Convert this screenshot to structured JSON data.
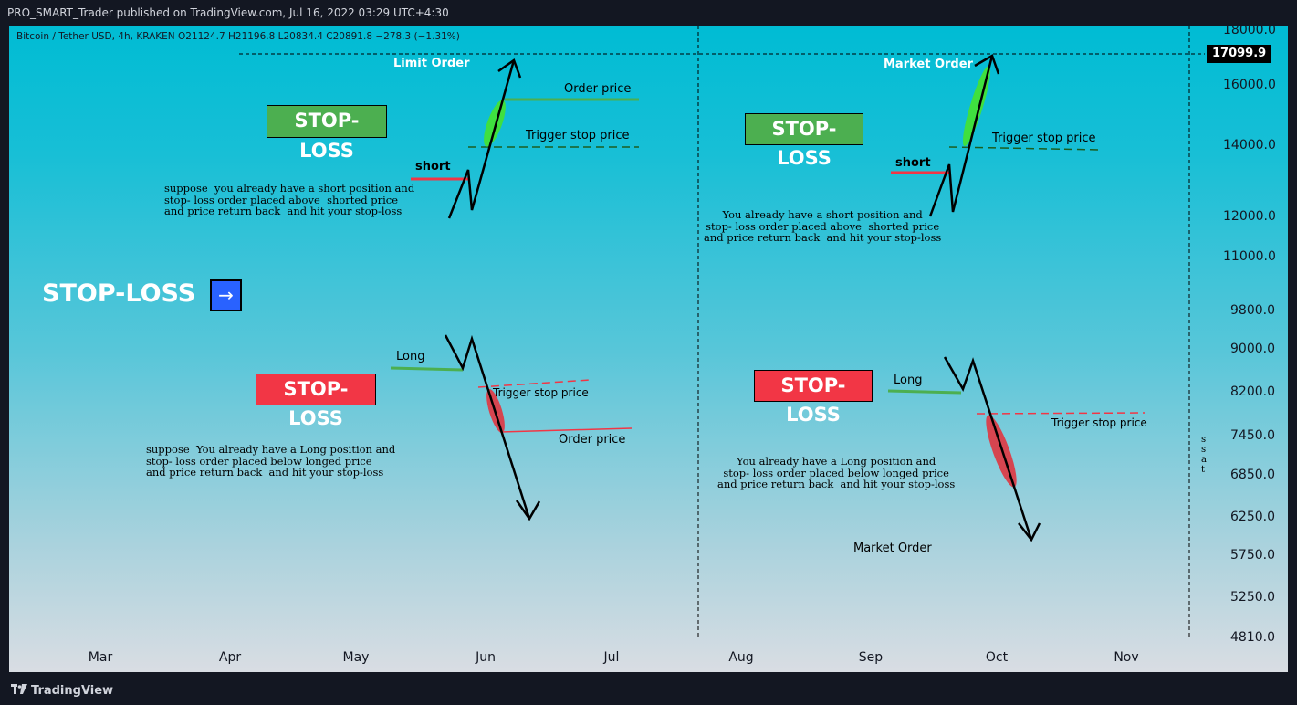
{
  "header": {
    "publisher": "PRO_SMART_Trader published on TradingView.com, Jul 16, 2022 03:29 UTC+4:30"
  },
  "footer": {
    "brand": "TradingView",
    "logo_icon": "tradingview-logo-icon"
  },
  "symbol_info": "Bitcoin / Tether USD, 4h, KRAKEN  O21124.7  H21196.8  L20834.4  C20891.8  −278.3 (−1.31%)",
  "current_price": "17099.9",
  "chart_data": {
    "type": "line",
    "x_axis_labels": [
      "Mar",
      "Apr",
      "May",
      "Jun",
      "Jul",
      "Aug",
      "Sep",
      "Oct",
      "Nov"
    ],
    "y_axis_labels": [
      "18000.0",
      "16000.0",
      "14000.0",
      "12000.0",
      "11000.0",
      "9800.0",
      "9000.0",
      "8200.0",
      "7450.0",
      "6850.0",
      "6250.0",
      "5750.0",
      "5250.0",
      "4810.0"
    ],
    "y_scale": "log",
    "grid": false,
    "current_price": 17099.9
  },
  "annotations": {
    "title_left_top": "Limit Order",
    "title_right_top": "Market Order",
    "market_order_bottom": "Market Order",
    "stop_loss": "STOP-LOSS",
    "arrow_button": "→",
    "order_price": "Order price",
    "trigger_stop_price": "Trigger stop price",
    "trigger_stop_price_2": "Trigger stop  price",
    "short": "short",
    "long": "Long",
    "note_short_limit": "suppose  you already have a short position and\nstop- loss order placed above  shorted price\nand price return back  and hit your stop-loss",
    "note_short_market": "You already have a short position and\nstop- loss order placed above  shorted price\nand price return back  and hit your stop-loss",
    "note_long_limit": "suppose  You already have a Long position and\nstop- loss order placed below longed price\nand price return back  and hit your stop-loss",
    "note_long_market": "You already have a Long position and\nstop- loss order placed below longed price\nand price return back  and hit your stop-loss",
    "partial_edge_text": "s\ns\na\nt"
  },
  "colors": {
    "green": "#4caf50",
    "red": "#f23645",
    "blue": "#2962ff",
    "bright_green": "#3fe03f"
  }
}
